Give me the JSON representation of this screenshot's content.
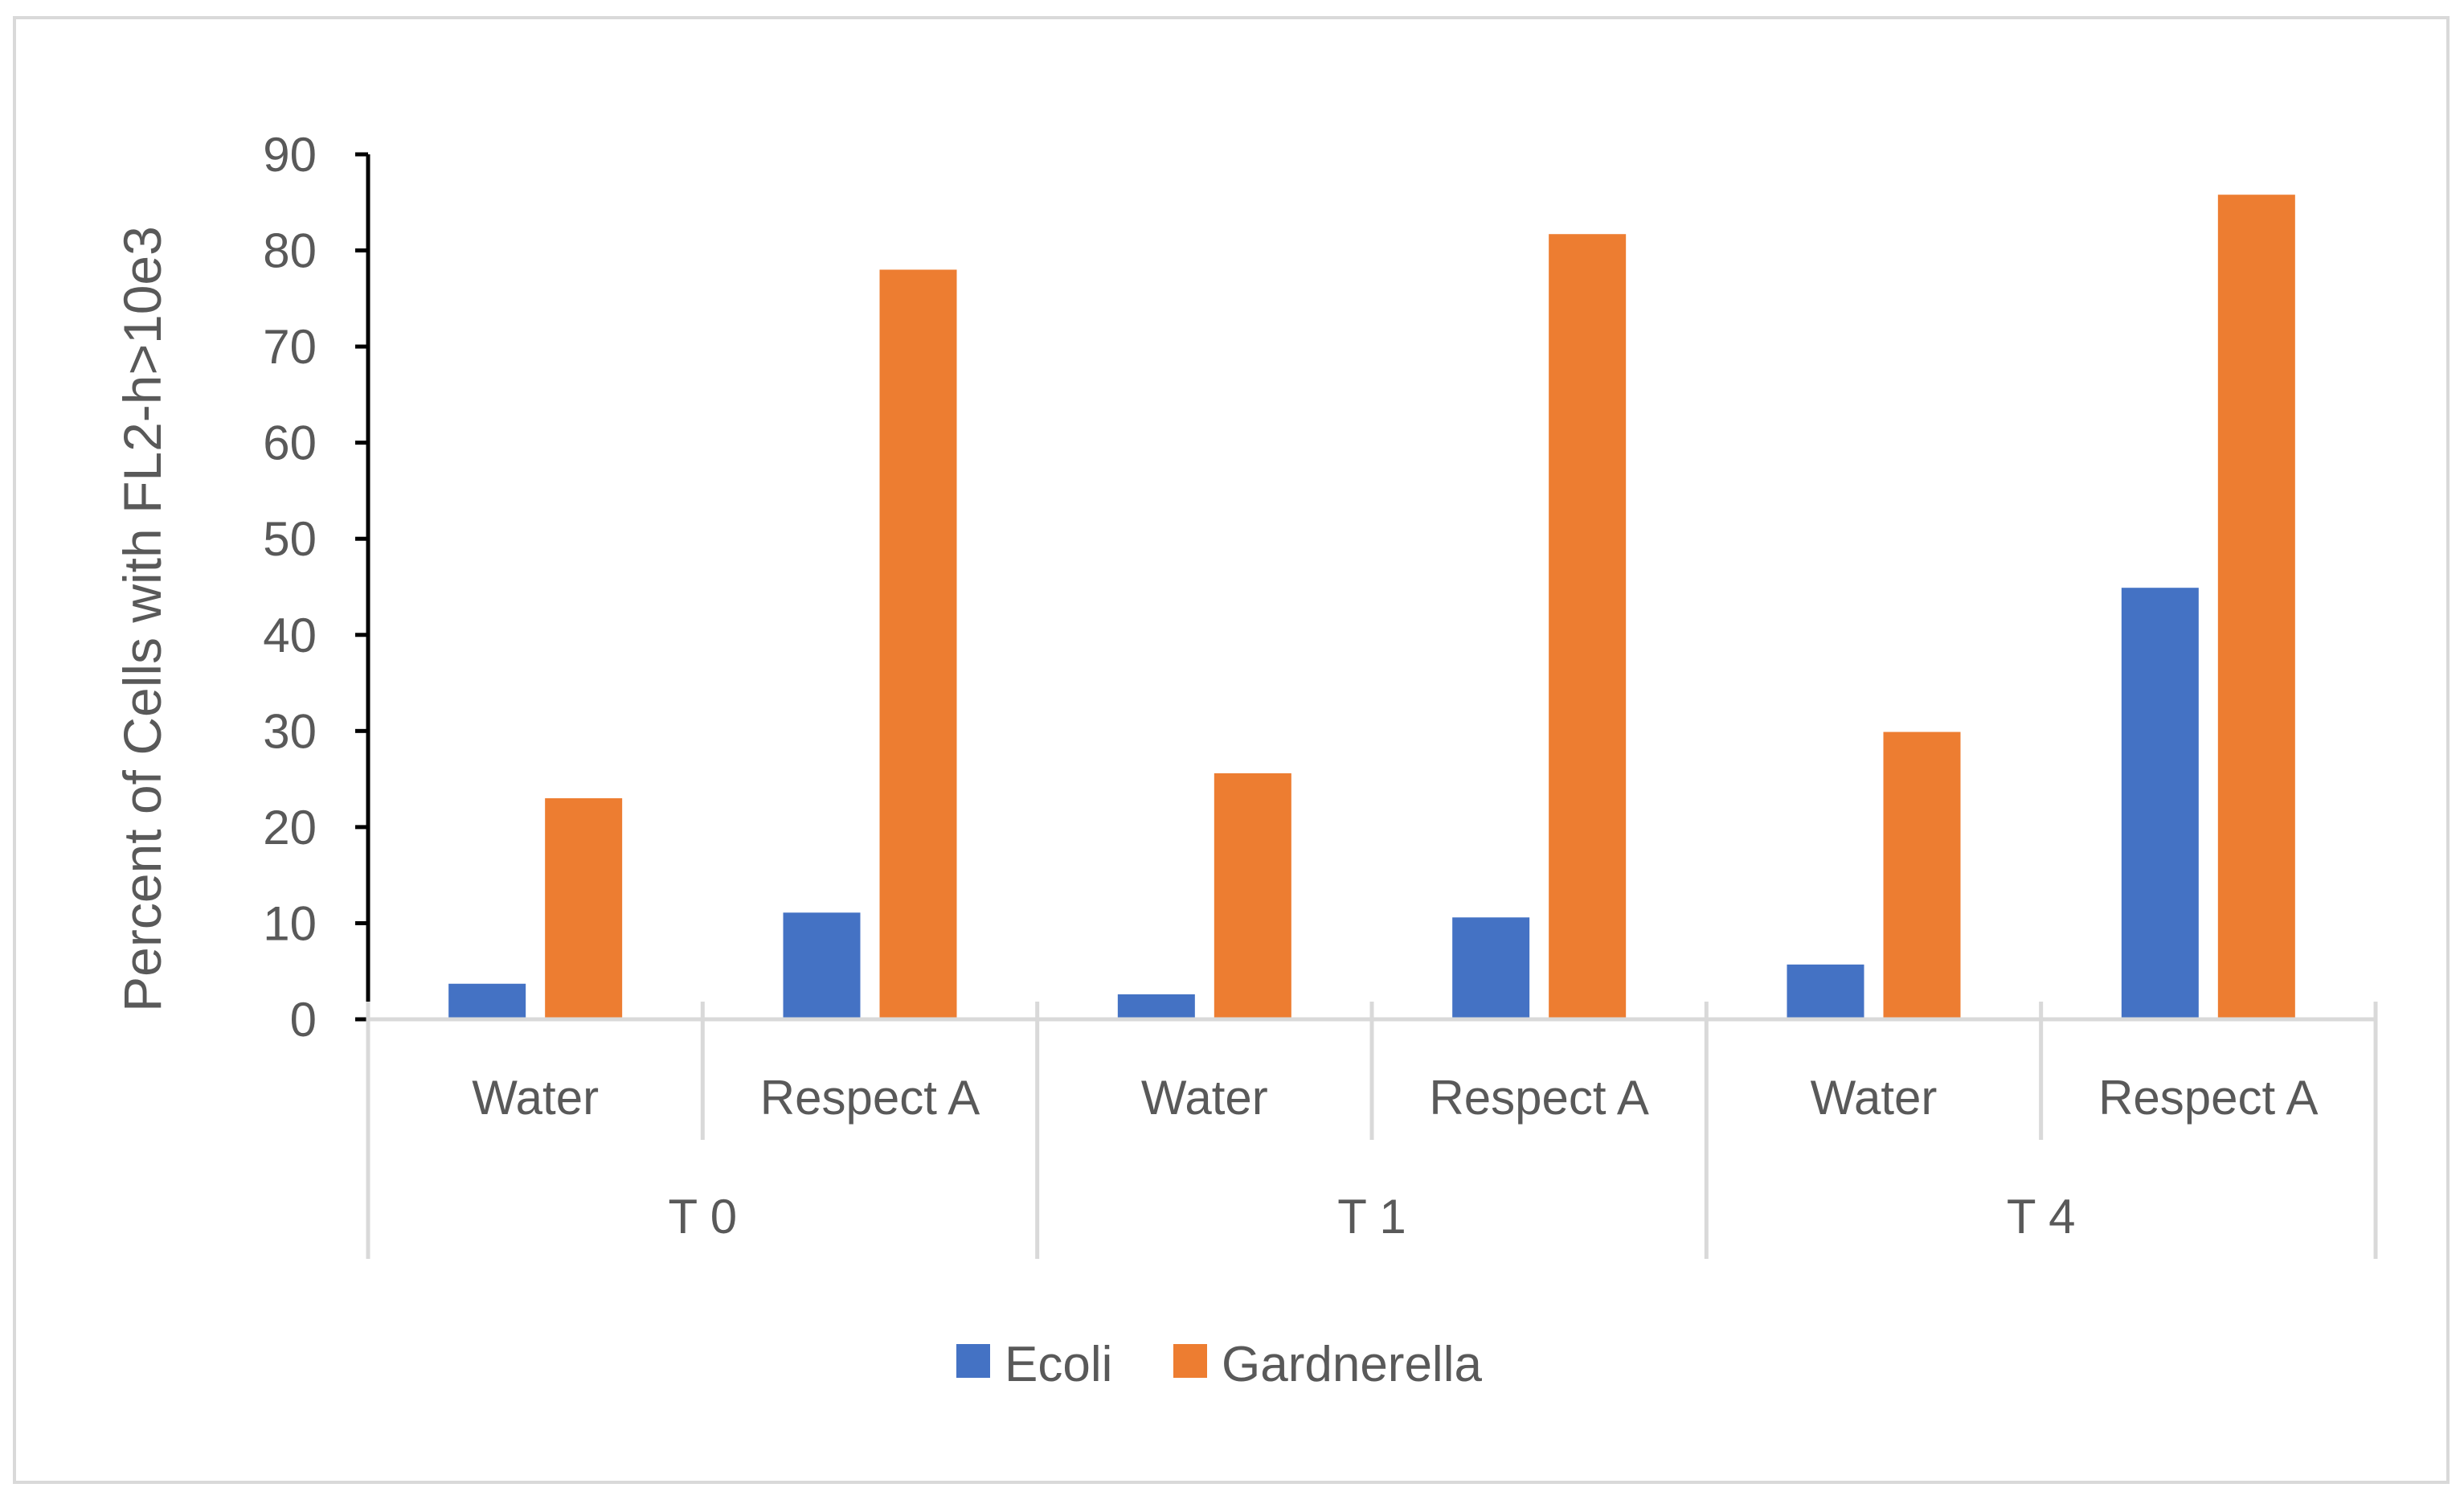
{
  "chart_data": {
    "type": "bar",
    "title": "",
    "xlabel": "",
    "ylabel": "Percent of Cells with FL2-h>10e3",
    "ylim": [
      0,
      90
    ],
    "yticks": [
      0,
      10,
      20,
      30,
      40,
      50,
      60,
      70,
      80,
      90
    ],
    "grid": false,
    "legend_position": "bottom",
    "groups": [
      {
        "label": "T 0",
        "categories": [
          "Water",
          "Respect A"
        ]
      },
      {
        "label": "T 1",
        "categories": [
          "Water",
          "Respect A"
        ]
      },
      {
        "label": "T 4",
        "categories": [
          "Water",
          "Respect A"
        ]
      }
    ],
    "categories": [
      "Water",
      "Respect A",
      "Water",
      "Respect A",
      "Water",
      "Respect A"
    ],
    "series": [
      {
        "name": "Ecoli",
        "color": "#4472c4",
        "values": [
          3.7,
          11.1,
          2.6,
          10.6,
          5.7,
          44.9
        ]
      },
      {
        "name": "Gardnerella",
        "color": "#ed7d31",
        "values": [
          23.0,
          78.0,
          25.6,
          81.7,
          29.9,
          85.8
        ]
      }
    ]
  }
}
